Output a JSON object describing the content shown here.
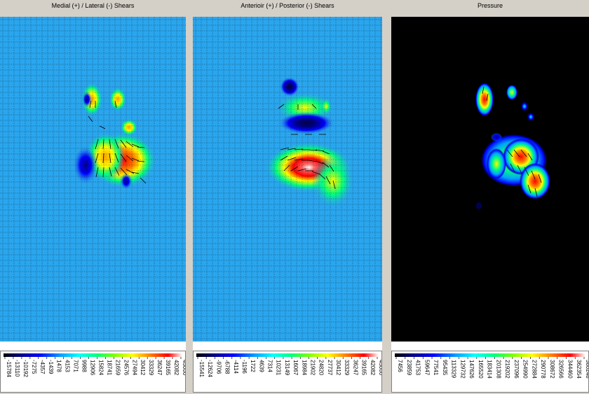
{
  "panels": [
    {
      "id": "ml",
      "title": "Medial (+) / Lateral (-) Shears",
      "background": "#2aa6ee",
      "legend_ticks": [
        "-15784",
        "-13110",
        "-10192",
        "-7275",
        "-4357",
        "-1439",
        "1478",
        "4153",
        "7071",
        "9988",
        "12906",
        "15824",
        "18741",
        "21659",
        "24576",
        "27494",
        "30412",
        "33329",
        "36247",
        "39165",
        "42082",
        "45000"
      ]
    },
    {
      "id": "ap",
      "title": "Anterioir (+) / Posterior (-) Shears",
      "background": "#2aa6ee",
      "legend_ticks": [
        "-15541",
        "-12624",
        "-9706",
        "-6788",
        "-4114",
        "-1196",
        "1722",
        "4639",
        "7314",
        "10231",
        "13149",
        "16067",
        "18984",
        "21902",
        "24820",
        "27737",
        "30412",
        "33329",
        "36247",
        "39165",
        "42082",
        "45000"
      ]
    },
    {
      "id": "pr",
      "title": "Pressure",
      "background": "#000000",
      "legend_ticks": [
        "7456",
        "23859",
        "41753",
        "59647",
        "77541",
        "95435",
        "113329",
        "129732",
        "147626",
        "165520",
        "183414",
        "201308",
        "219202",
        "237096",
        "254990",
        "272884",
        "290778",
        "308672",
        "326566",
        "344460",
        "362354",
        "380248"
      ]
    }
  ],
  "colors": {
    "colormap": [
      "#000000",
      "#00008b",
      "#0000ff",
      "#00a0ff",
      "#00ffff",
      "#00ff80",
      "#80ff00",
      "#ffff00",
      "#ff8000",
      "#ff0000",
      "#ffffff"
    ]
  }
}
